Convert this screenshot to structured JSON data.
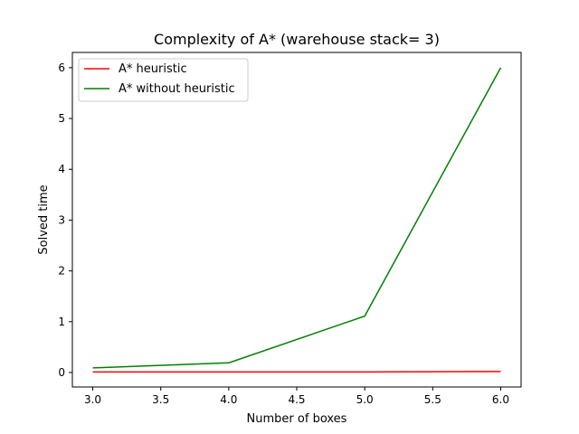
{
  "chart_data": {
    "type": "line",
    "title": "Complexity of A* (warehouse stack= 3)",
    "xlabel": "Number of boxes",
    "ylabel": "Solved time",
    "x": [
      3.0,
      4.0,
      5.0,
      6.0
    ],
    "series": [
      {
        "name": "A* heuristic",
        "values": [
          0.01,
          0.01,
          0.01,
          0.02
        ],
        "color": "#ff0000"
      },
      {
        "name": "A* without heuristic",
        "values": [
          0.09,
          0.19,
          1.11,
          6.0
        ],
        "color": "#008000"
      }
    ],
    "xlim": [
      2.85,
      6.15
    ],
    "ylim": [
      -0.285,
      6.3
    ],
    "xticks": [
      "3.0",
      "3.5",
      "4.0",
      "4.5",
      "5.0",
      "5.5",
      "6.0"
    ],
    "yticks": [
      "0",
      "1",
      "2",
      "3",
      "4",
      "5",
      "6"
    ],
    "legend_position": "top-left",
    "grid": false
  }
}
